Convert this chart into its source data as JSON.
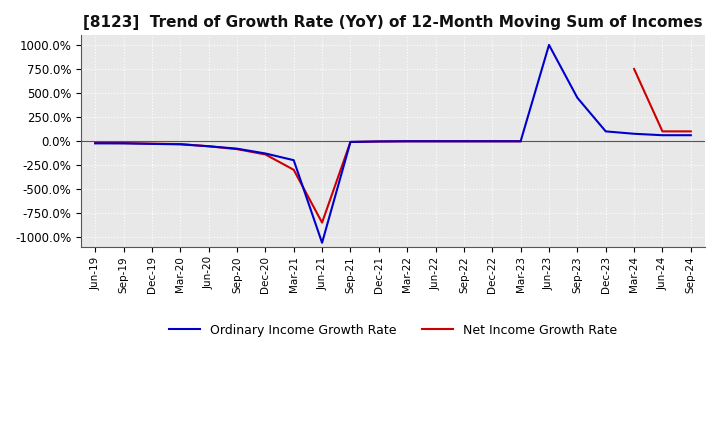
{
  "title": "[8123]  Trend of Growth Rate (YoY) of 12-Month Moving Sum of Incomes",
  "title_fontsize": 11,
  "ylim": [
    -1100,
    1100
  ],
  "yticks": [
    -1000,
    -750,
    -500,
    -250,
    0,
    250,
    500,
    750,
    1000
  ],
  "ytick_labels": [
    "-1000.0%",
    "-750.0%",
    "-500.0%",
    "-250.0%",
    "0.0%",
    "250.0%",
    "500.0%",
    "750.0%",
    "1000.0%"
  ],
  "background_color": "#ffffff",
  "plot_bg_color": "#e8e8e8",
  "grid_color": "#ffffff",
  "line_color_ordinary": "#0000cc",
  "line_color_net": "#cc0000",
  "legend_ordinary": "Ordinary Income Growth Rate",
  "legend_net": "Net Income Growth Rate",
  "x_labels": [
    "Jun-19",
    "Sep-19",
    "Dec-19",
    "Mar-20",
    "Jun-20",
    "Sep-20",
    "Dec-20",
    "Mar-21",
    "Jun-21",
    "Sep-21",
    "Dec-21",
    "Mar-22",
    "Jun-22",
    "Sep-22",
    "Dec-22",
    "Mar-23",
    "Jun-23",
    "Sep-23",
    "Dec-23",
    "Mar-24",
    "Jun-24",
    "Sep-24"
  ],
  "ordinary_income_growth": [
    -25,
    -25,
    -30,
    -35,
    -55,
    -80,
    -130,
    -200,
    -1060,
    -10,
    -5,
    -3,
    -3,
    -3,
    -3,
    -3,
    1000,
    450,
    100,
    75,
    60,
    60
  ],
  "net_income_growth": [
    -20,
    -22,
    -28,
    -32,
    -55,
    -85,
    -140,
    -300,
    -850,
    -10,
    -5,
    -3,
    -3,
    -3,
    -3,
    -3,
    null,
    null,
    null,
    750,
    100,
    100
  ]
}
